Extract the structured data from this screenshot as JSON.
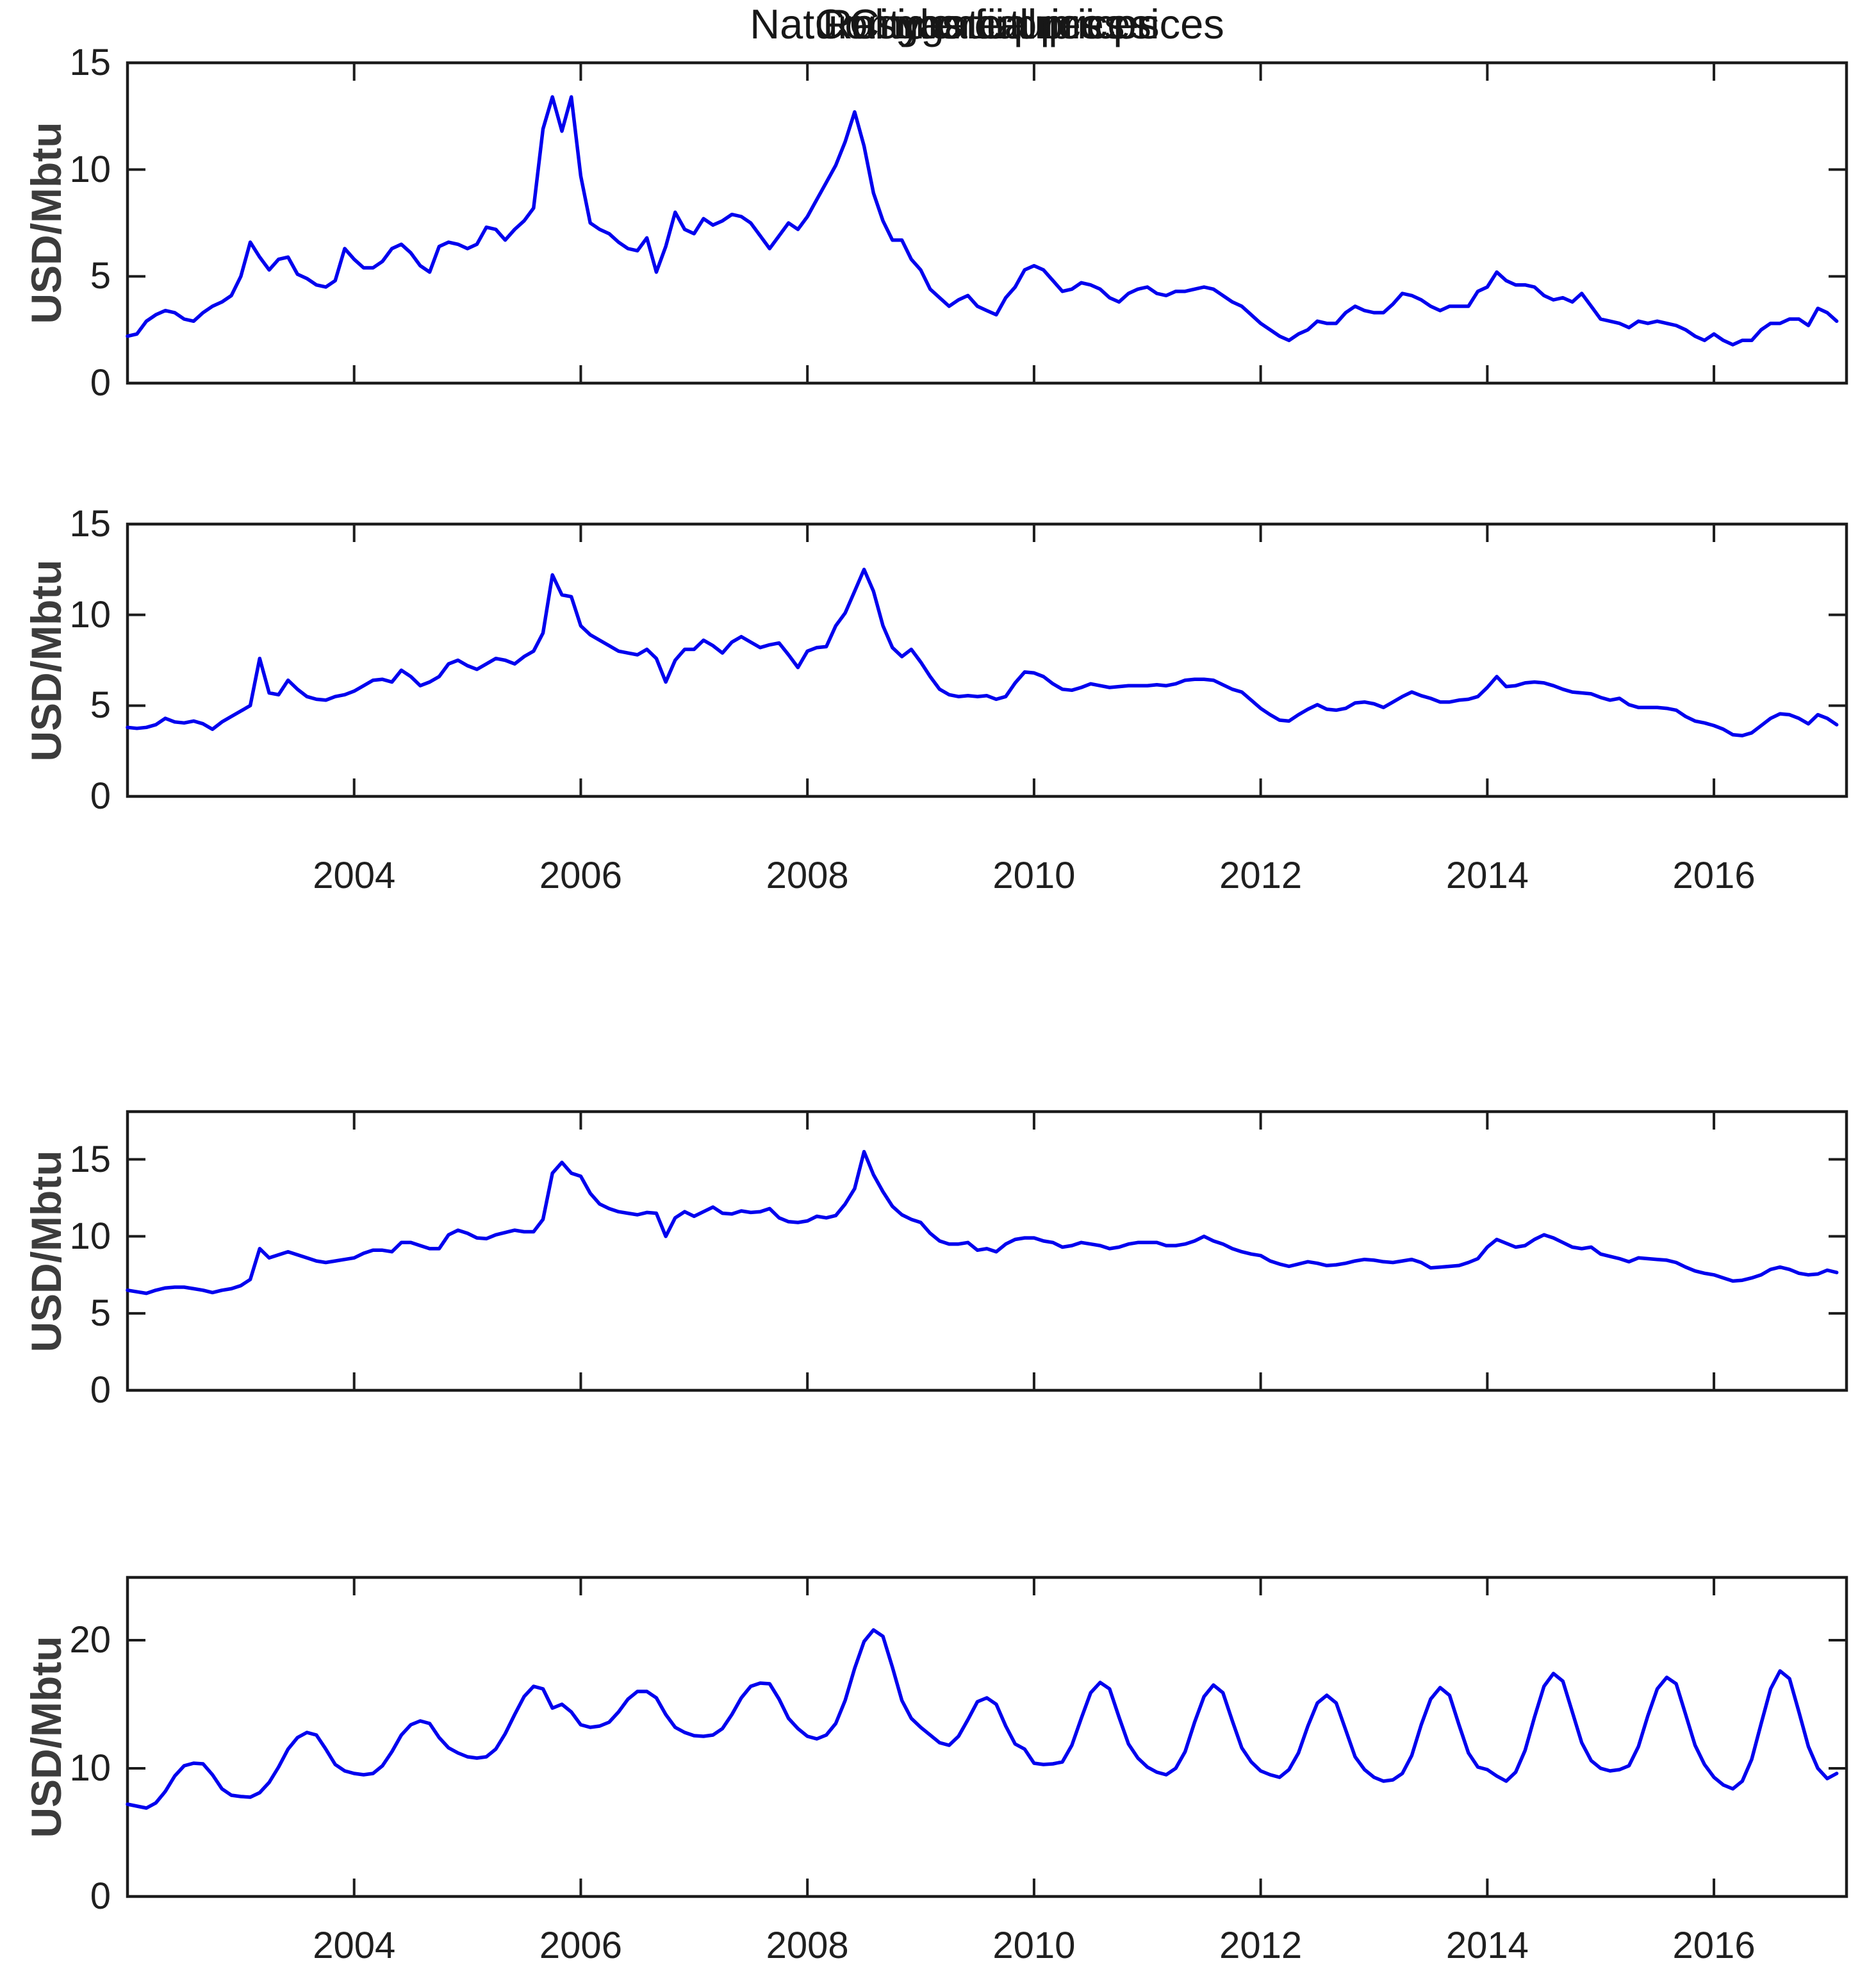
{
  "figure": {
    "background": "#ffffff",
    "line_color": "#0000EE",
    "axis_color": "#1c1c1c",
    "tick_label_color": "#1f1f1f",
    "axis_label_color": "#3c3c3c"
  },
  "chart_data": [
    {
      "type": "line",
      "title": "Natural gas futures prices",
      "ylabel": "USD/Mbtu",
      "xlabel": "",
      "xlim": [
        2002,
        2017.17
      ],
      "ylim": [
        0,
        15
      ],
      "yticks": [
        0,
        5,
        10,
        15
      ],
      "xticks": [
        2004,
        2006,
        2008,
        2010,
        2012,
        2014,
        2016
      ],
      "show_x_tick_labels": false,
      "grid": false,
      "legend": null,
      "x_start_year": 2002,
      "points_per_year": 12,
      "values": [
        2.2,
        2.3,
        2.9,
        3.2,
        3.4,
        3.3,
        3.0,
        2.9,
        3.3,
        3.6,
        3.8,
        4.1,
        5.0,
        6.6,
        5.9,
        5.3,
        5.8,
        5.9,
        5.1,
        4.9,
        4.6,
        4.5,
        4.8,
        6.3,
        5.8,
        5.4,
        5.4,
        5.7,
        6.3,
        6.5,
        6.1,
        5.5,
        5.2,
        6.4,
        6.6,
        6.5,
        6.3,
        6.5,
        7.3,
        7.2,
        6.7,
        7.2,
        7.6,
        8.2,
        11.9,
        13.4,
        11.8,
        13.4,
        9.7,
        7.5,
        7.2,
        7.0,
        6.6,
        6.3,
        6.2,
        6.8,
        5.2,
        6.4,
        8.0,
        7.2,
        7.0,
        7.7,
        7.4,
        7.6,
        7.9,
        7.8,
        7.5,
        6.9,
        6.3,
        6.9,
        7.5,
        7.2,
        7.8,
        8.6,
        9.4,
        10.2,
        11.3,
        12.7,
        11.1,
        8.9,
        7.6,
        6.7,
        6.7,
        5.8,
        5.3,
        4.4,
        4.0,
        3.6,
        3.9,
        4.1,
        3.6,
        3.4,
        3.2,
        4.0,
        4.5,
        5.3,
        5.5,
        5.3,
        4.8,
        4.3,
        4.4,
        4.7,
        4.6,
        4.4,
        4.0,
        3.8,
        4.2,
        4.4,
        4.5,
        4.2,
        4.1,
        4.3,
        4.3,
        4.4,
        4.5,
        4.4,
        4.1,
        3.8,
        3.6,
        3.2,
        2.8,
        2.5,
        2.2,
        2.0,
        2.3,
        2.5,
        2.9,
        2.8,
        2.8,
        3.3,
        3.6,
        3.4,
        3.3,
        3.3,
        3.7,
        4.2,
        4.1,
        3.9,
        3.6,
        3.4,
        3.6,
        3.6,
        3.6,
        4.3,
        4.5,
        5.2,
        4.8,
        4.6,
        4.6,
        4.5,
        4.1,
        3.9,
        4.0,
        3.8,
        4.2,
        3.6,
        3.0,
        2.9,
        2.8,
        2.6,
        2.9,
        2.8,
        2.9,
        2.8,
        2.7,
        2.5,
        2.2,
        2.0,
        2.3,
        2.0,
        1.8,
        2.0,
        2.0,
        2.5,
        2.8,
        2.8,
        3.0,
        3.0,
        2.7,
        3.5,
        3.3,
        2.9
      ]
    },
    {
      "type": "line",
      "title": "Citygate prices",
      "ylabel": "USD/Mbtu",
      "xlabel": "",
      "xlim": [
        2002,
        2017.17
      ],
      "ylim": [
        0,
        15
      ],
      "yticks": [
        0,
        5,
        10,
        15
      ],
      "xticks": [
        2004,
        2006,
        2008,
        2010,
        2012,
        2014,
        2016
      ],
      "show_x_tick_labels": true,
      "grid": false,
      "legend": null,
      "x_start_year": 2002,
      "points_per_year": 12,
      "values": [
        3.8,
        3.75,
        3.8,
        3.95,
        4.3,
        4.1,
        4.05,
        4.15,
        4.0,
        3.7,
        4.1,
        4.4,
        4.7,
        5.0,
        7.6,
        5.7,
        5.6,
        6.4,
        5.9,
        5.5,
        5.35,
        5.3,
        5.5,
        5.6,
        5.8,
        6.1,
        6.4,
        6.45,
        6.3,
        6.95,
        6.6,
        6.1,
        6.3,
        6.6,
        7.3,
        7.5,
        7.2,
        7.0,
        7.3,
        7.6,
        7.5,
        7.3,
        7.7,
        8.0,
        9.0,
        12.2,
        11.1,
        11.0,
        9.4,
        8.9,
        8.6,
        8.3,
        8.0,
        7.9,
        7.8,
        8.1,
        7.6,
        6.3,
        7.5,
        8.1,
        8.1,
        8.6,
        8.3,
        7.9,
        8.5,
        8.8,
        8.5,
        8.2,
        8.35,
        8.45,
        7.8,
        7.1,
        8.0,
        8.2,
        8.25,
        9.4,
        10.1,
        11.3,
        12.5,
        11.3,
        9.4,
        8.2,
        7.7,
        8.1,
        7.4,
        6.6,
        5.9,
        5.6,
        5.5,
        5.55,
        5.5,
        5.55,
        5.35,
        5.5,
        6.25,
        6.85,
        6.8,
        6.6,
        6.2,
        5.9,
        5.85,
        6.0,
        6.2,
        6.1,
        6.0,
        6.05,
        6.1,
        6.1,
        6.1,
        6.15,
        6.1,
        6.2,
        6.4,
        6.45,
        6.45,
        6.4,
        6.15,
        5.9,
        5.75,
        5.3,
        4.85,
        4.5,
        4.2,
        4.15,
        4.5,
        4.8,
        5.05,
        4.8,
        4.75,
        4.85,
        5.15,
        5.2,
        5.1,
        4.9,
        5.2,
        5.5,
        5.75,
        5.55,
        5.4,
        5.2,
        5.2,
        5.3,
        5.35,
        5.5,
        6.0,
        6.6,
        6.05,
        6.1,
        6.25,
        6.3,
        6.25,
        6.1,
        5.9,
        5.75,
        5.7,
        5.65,
        5.45,
        5.3,
        5.4,
        5.05,
        4.9,
        4.9,
        4.9,
        4.85,
        4.75,
        4.4,
        4.15,
        4.05,
        3.9,
        3.7,
        3.4,
        3.35,
        3.5,
        3.9,
        4.3,
        4.55,
        4.5,
        4.3,
        4.0,
        4.5,
        4.3,
        3.95
      ]
    },
    {
      "type": "line",
      "title": "Commercial prices",
      "ylabel": "USD/Mbtu",
      "xlabel": "",
      "xlim": [
        2002,
        2017.17
      ],
      "ylim": [
        0,
        18.1
      ],
      "yticks": [
        0,
        5,
        10,
        15
      ],
      "xticks": [
        2004,
        2006,
        2008,
        2010,
        2012,
        2014,
        2016
      ],
      "show_x_tick_labels": false,
      "grid": false,
      "legend": null,
      "x_start_year": 2002,
      "points_per_year": 12,
      "values": [
        6.5,
        6.4,
        6.3,
        6.5,
        6.65,
        6.7,
        6.7,
        6.6,
        6.5,
        6.35,
        6.5,
        6.6,
        6.8,
        7.2,
        9.2,
        8.6,
        8.8,
        9.0,
        8.8,
        8.6,
        8.4,
        8.3,
        8.4,
        8.5,
        8.6,
        8.9,
        9.1,
        9.1,
        9.0,
        9.6,
        9.6,
        9.4,
        9.2,
        9.2,
        10.1,
        10.4,
        10.2,
        9.9,
        9.85,
        10.1,
        10.25,
        10.4,
        10.3,
        10.3,
        11.1,
        14.1,
        14.8,
        14.1,
        13.9,
        12.8,
        12.1,
        11.8,
        11.6,
        11.5,
        11.4,
        11.55,
        11.5,
        10.0,
        11.2,
        11.6,
        11.3,
        11.6,
        11.9,
        11.5,
        11.45,
        11.65,
        11.55,
        11.6,
        11.8,
        11.2,
        10.95,
        10.9,
        11.0,
        11.3,
        11.2,
        11.35,
        12.1,
        13.1,
        15.5,
        14.0,
        12.9,
        11.95,
        11.4,
        11.1,
        10.9,
        10.2,
        9.7,
        9.5,
        9.5,
        9.6,
        9.1,
        9.2,
        9.0,
        9.5,
        9.8,
        9.9,
        9.9,
        9.7,
        9.6,
        9.3,
        9.4,
        9.6,
        9.5,
        9.4,
        9.2,
        9.3,
        9.5,
        9.6,
        9.6,
        9.6,
        9.4,
        9.4,
        9.5,
        9.7,
        10.0,
        9.7,
        9.5,
        9.2,
        9.0,
        8.85,
        8.75,
        8.4,
        8.2,
        8.05,
        8.2,
        8.35,
        8.25,
        8.1,
        8.15,
        8.25,
        8.4,
        8.5,
        8.45,
        8.35,
        8.3,
        8.4,
        8.5,
        8.3,
        7.95,
        8.0,
        8.05,
        8.1,
        8.3,
        8.55,
        9.3,
        9.8,
        9.55,
        9.3,
        9.4,
        9.8,
        10.1,
        9.9,
        9.6,
        9.3,
        9.2,
        9.3,
        8.85,
        8.7,
        8.55,
        8.35,
        8.6,
        8.55,
        8.5,
        8.45,
        8.3,
        8.0,
        7.75,
        7.6,
        7.5,
        7.3,
        7.1,
        7.15,
        7.3,
        7.5,
        7.85,
        8.0,
        7.85,
        7.6,
        7.5,
        7.55,
        7.8,
        7.65
      ]
    },
    {
      "type": "line",
      "title": "Residential prices",
      "ylabel": "USD/Mbtu",
      "xlabel": "",
      "xlim": [
        2002,
        2017.17
      ],
      "ylim": [
        0,
        24.9
      ],
      "yticks": [
        0,
        10,
        20
      ],
      "xticks": [
        2004,
        2006,
        2008,
        2010,
        2012,
        2014,
        2016
      ],
      "show_x_tick_labels": true,
      "grid": false,
      "legend": null,
      "x_start_year": 2002,
      "points_per_year": 12,
      "values": [
        7.2,
        7.05,
        6.9,
        7.3,
        8.2,
        9.4,
        10.2,
        10.4,
        10.35,
        9.5,
        8.4,
        7.9,
        7.8,
        7.75,
        8.1,
        8.9,
        10.1,
        11.5,
        12.4,
        12.8,
        12.6,
        11.5,
        10.3,
        9.8,
        9.6,
        9.5,
        9.6,
        10.2,
        11.3,
        12.6,
        13.4,
        13.7,
        13.5,
        12.4,
        11.6,
        11.2,
        10.9,
        10.8,
        10.9,
        11.5,
        12.7,
        14.2,
        15.6,
        16.4,
        16.2,
        14.7,
        15.0,
        14.4,
        13.4,
        13.2,
        13.3,
        13.6,
        14.4,
        15.4,
        16.0,
        16.0,
        15.5,
        14.2,
        13.2,
        12.8,
        12.55,
        12.5,
        12.6,
        13.1,
        14.2,
        15.5,
        16.4,
        16.65,
        16.6,
        15.4,
        13.9,
        13.1,
        12.5,
        12.3,
        12.6,
        13.5,
        15.3,
        17.8,
        19.9,
        20.8,
        20.3,
        17.9,
        15.3,
        13.9,
        13.2,
        12.6,
        12.0,
        11.8,
        12.5,
        13.8,
        15.2,
        15.5,
        15.0,
        13.3,
        11.9,
        11.5,
        10.4,
        10.3,
        10.35,
        10.5,
        11.8,
        13.9,
        15.9,
        16.7,
        16.2,
        14.0,
        11.9,
        10.8,
        10.1,
        9.7,
        9.5,
        10.0,
        11.3,
        13.6,
        15.6,
        16.5,
        15.9,
        13.7,
        11.6,
        10.5,
        9.8,
        9.5,
        9.3,
        9.9,
        11.2,
        13.3,
        15.1,
        15.7,
        15.1,
        13.0,
        10.9,
        9.9,
        9.3,
        9.0,
        9.1,
        9.6,
        11.0,
        13.4,
        15.4,
        16.3,
        15.7,
        13.4,
        11.2,
        10.1,
        9.9,
        9.4,
        9.0,
        9.7,
        11.4,
        14.0,
        16.4,
        17.4,
        16.8,
        14.4,
        12.0,
        10.6,
        10.0,
        9.8,
        9.9,
        10.2,
        11.7,
        14.1,
        16.2,
        17.1,
        16.6,
        14.2,
        11.8,
        10.3,
        9.3,
        8.7,
        8.4,
        9.0,
        10.7,
        13.5,
        16.2,
        17.6,
        17.0,
        14.4,
        11.7,
        10.0,
        9.2,
        9.6
      ]
    }
  ]
}
